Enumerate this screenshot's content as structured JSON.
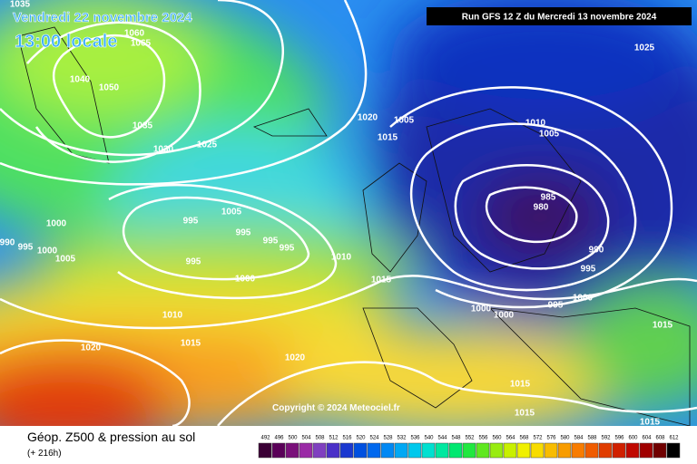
{
  "header": {
    "date": "Vendredi 22 novembre 2024",
    "time": "13:00 locale",
    "run": "Run GFS 12 Z du Mercredi 13 novembre 2024"
  },
  "footer": {
    "copyright": "Copyright © 2024 Meteociel.fr"
  },
  "legend": {
    "title": "Géop. Z500 & pression au sol",
    "forecast": "(+ 216h)",
    "scale": [
      "492",
      "496",
      "500",
      "504",
      "508",
      "512",
      "516",
      "520",
      "524",
      "528",
      "532",
      "536",
      "540",
      "544",
      "548",
      "552",
      "556",
      "560",
      "564",
      "568",
      "572",
      "576",
      "580",
      "584",
      "588",
      "592",
      "596",
      "600",
      "604",
      "608",
      "612"
    ]
  },
  "isobar_labels": [
    "1035",
    "1060",
    "1065",
    "1040",
    "1050",
    "1035",
    "1030",
    "1025",
    "1020",
    "1005",
    "1015",
    "1010",
    "1005",
    "1025",
    "1005",
    "995",
    "995",
    "995",
    "995",
    "995",
    "1000",
    "990",
    "995",
    "1000",
    "1005",
    "1010",
    "1000",
    "1015",
    "1010",
    "1015",
    "1020",
    "1020",
    "985",
    "980",
    "990",
    "995",
    "1000",
    "995",
    "1000",
    "1000",
    "1015",
    "1015",
    "1015",
    "1015"
  ]
}
